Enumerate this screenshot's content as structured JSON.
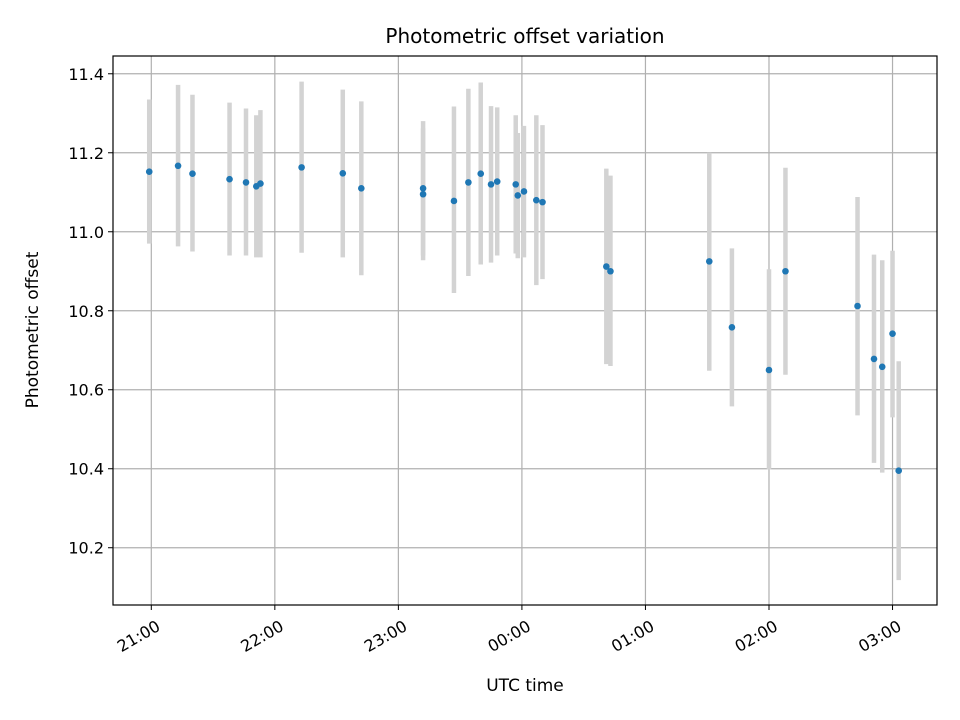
{
  "chart_data": {
    "type": "scatter",
    "title": "Photometric offset variation",
    "xlabel": "UTC time",
    "ylabel": "Photometric offset",
    "grid": true,
    "x_unit": "hours UTC",
    "xlim": [
      20.69,
      27.36
    ],
    "ylim": [
      10.055,
      11.445
    ],
    "x_ticks": [
      {
        "value": 21,
        "label": "21:00"
      },
      {
        "value": 22,
        "label": "22:00"
      },
      {
        "value": 23,
        "label": "23:00"
      },
      {
        "value": 24,
        "label": "00:00"
      },
      {
        "value": 25,
        "label": "01:00"
      },
      {
        "value": 26,
        "label": "02:00"
      },
      {
        "value": 27,
        "label": "03:00"
      }
    ],
    "y_ticks": [
      {
        "value": 10.2,
        "label": "10.2"
      },
      {
        "value": 10.4,
        "label": "10.4"
      },
      {
        "value": 10.6,
        "label": "10.6"
      },
      {
        "value": 10.8,
        "label": "10.8"
      },
      {
        "value": 11.0,
        "label": "11.0"
      },
      {
        "value": 11.2,
        "label": "11.2"
      },
      {
        "value": 11.4,
        "label": "11.4"
      }
    ],
    "marker_color": "#1f77b4",
    "errorbar_color": "#d3d3d3",
    "points": [
      {
        "time": "20:59",
        "y": 11.152,
        "err_low": 10.97,
        "err_high": 11.335
      },
      {
        "time": "21:13",
        "y": 11.167,
        "err_low": 10.963,
        "err_high": 11.372
      },
      {
        "time": "21:20",
        "y": 11.147,
        "err_low": 10.95,
        "err_high": 11.347
      },
      {
        "time": "21:38",
        "y": 11.133,
        "err_low": 10.94,
        "err_high": 11.327
      },
      {
        "time": "21:46",
        "y": 11.125,
        "err_low": 10.94,
        "err_high": 11.312
      },
      {
        "time": "21:51",
        "y": 11.115,
        "err_low": 10.935,
        "err_high": 11.295
      },
      {
        "time": "21:53",
        "y": 11.122,
        "err_low": 10.935,
        "err_high": 11.308
      },
      {
        "time": "22:13",
        "y": 11.163,
        "err_low": 10.947,
        "err_high": 11.38
      },
      {
        "time": "22:33",
        "y": 11.148,
        "err_low": 10.935,
        "err_high": 11.36
      },
      {
        "time": "22:42",
        "y": 11.11,
        "err_low": 10.89,
        "err_high": 11.33
      },
      {
        "time": "23:12",
        "y": 11.095,
        "err_low": 10.928,
        "err_high": 11.262
      },
      {
        "time": "23:12",
        "y": 11.11,
        "err_low": 10.94,
        "err_high": 11.28
      },
      {
        "time": "23:27",
        "y": 11.078,
        "err_low": 10.845,
        "err_high": 11.317
      },
      {
        "time": "23:34",
        "y": 11.125,
        "err_low": 10.888,
        "err_high": 11.362
      },
      {
        "time": "23:40",
        "y": 11.147,
        "err_low": 10.917,
        "err_high": 11.378
      },
      {
        "time": "23:45",
        "y": 11.12,
        "err_low": 10.922,
        "err_high": 11.318
      },
      {
        "time": "23:48",
        "y": 11.127,
        "err_low": 10.94,
        "err_high": 11.315
      },
      {
        "time": "23:57",
        "y": 11.12,
        "err_low": 10.945,
        "err_high": 11.295
      },
      {
        "time": "23:58",
        "y": 11.092,
        "err_low": 10.933,
        "err_high": 11.25
      },
      {
        "time": "00:01",
        "y": 11.102,
        "err_low": 10.935,
        "err_high": 11.268
      },
      {
        "time": "00:07",
        "y": 11.08,
        "err_low": 10.865,
        "err_high": 11.295
      },
      {
        "time": "00:10",
        "y": 11.075,
        "err_low": 10.88,
        "err_high": 11.27
      },
      {
        "time": "00:41",
        "y": 10.912,
        "err_low": 10.665,
        "err_high": 11.16
      },
      {
        "time": "00:43",
        "y": 10.9,
        "err_low": 10.66,
        "err_high": 11.142
      },
      {
        "time": "01:31",
        "y": 10.925,
        "err_low": 10.648,
        "err_high": 11.2
      },
      {
        "time": "01:42",
        "y": 10.758,
        "err_low": 10.558,
        "err_high": 10.958
      },
      {
        "time": "02:00",
        "y": 10.65,
        "err_low": 10.398,
        "err_high": 10.905
      },
      {
        "time": "02:08",
        "y": 10.9,
        "err_low": 10.638,
        "err_high": 11.162
      },
      {
        "time": "02:43",
        "y": 10.812,
        "err_low": 10.535,
        "err_high": 11.088
      },
      {
        "time": "02:51",
        "y": 10.678,
        "err_low": 10.415,
        "err_high": 10.942
      },
      {
        "time": "02:55",
        "y": 10.658,
        "err_low": 10.39,
        "err_high": 10.928
      },
      {
        "time": "03:00",
        "y": 10.742,
        "err_low": 10.53,
        "err_high": 10.952
      },
      {
        "time": "03:03",
        "y": 10.395,
        "err_low": 10.118,
        "err_high": 10.672
      }
    ]
  }
}
